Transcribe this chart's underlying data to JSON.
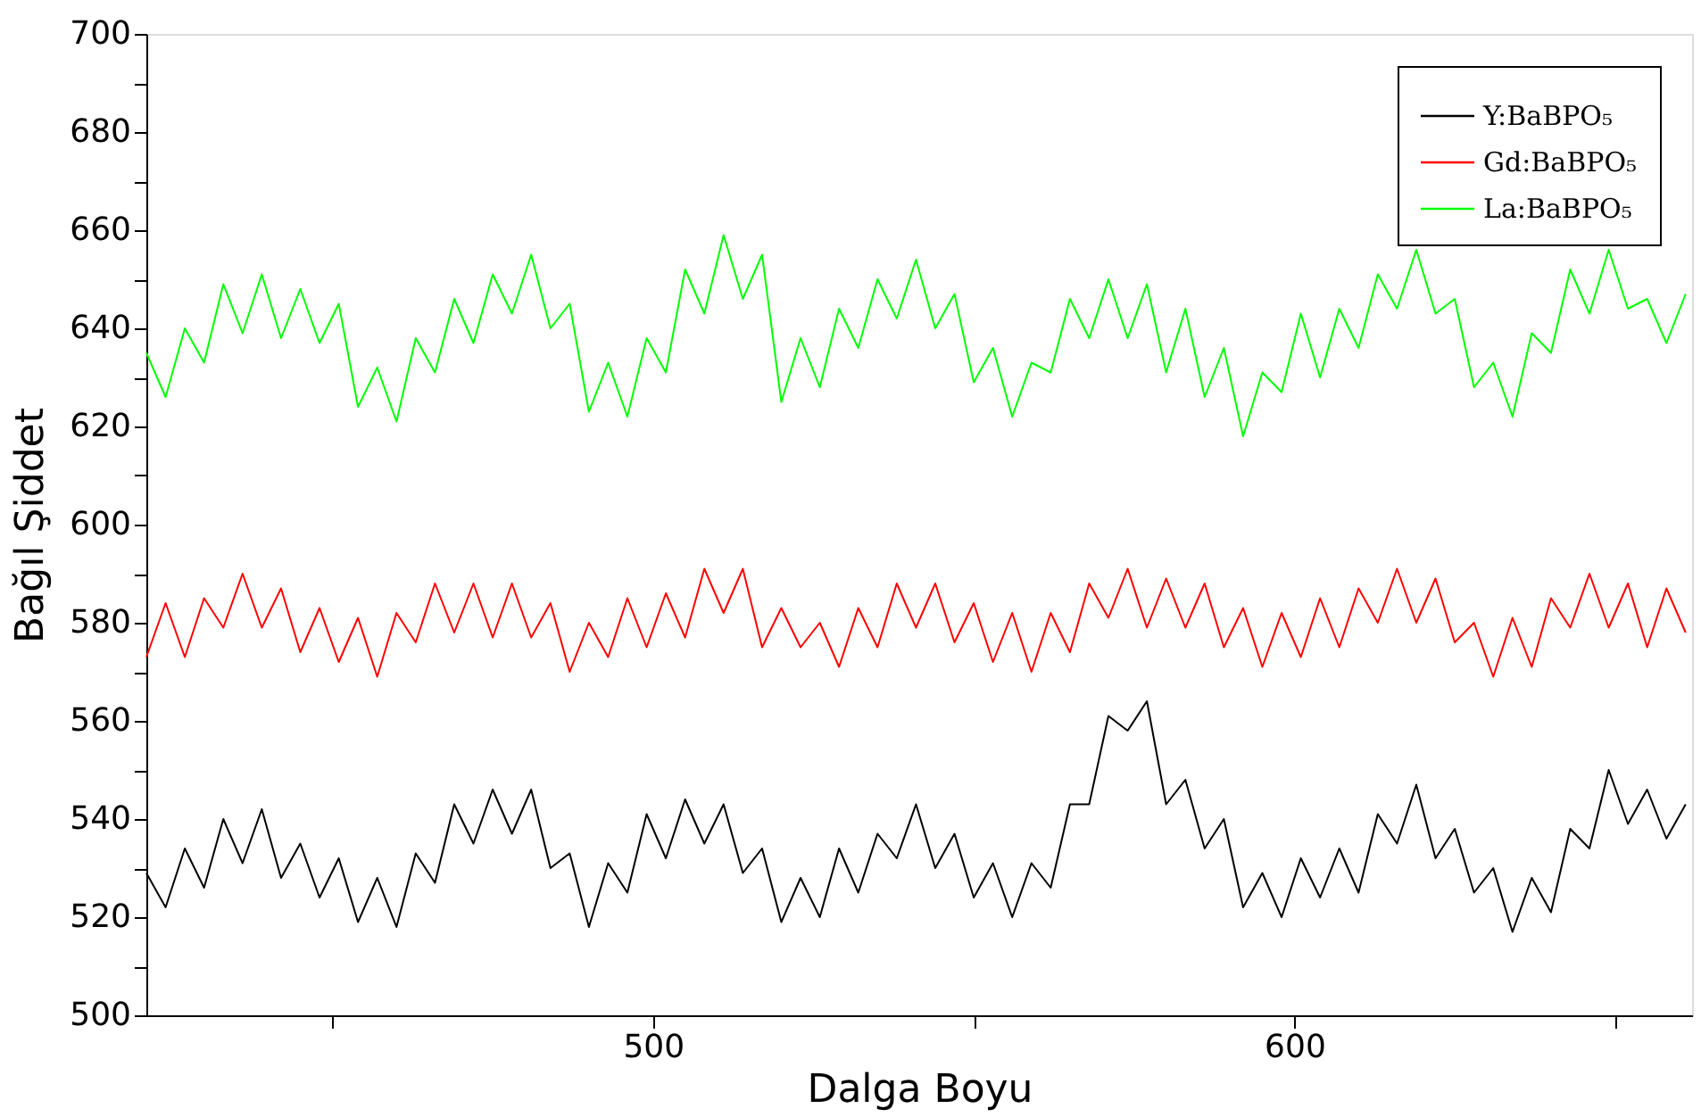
{
  "chart_data": {
    "type": "line",
    "xlabel": "Dalga Boyu",
    "ylabel": "Bağıl Şiddet",
    "legend": "top right",
    "grid": false,
    "xlim": [
      421,
      662
    ],
    "xticks": [
      {
        "value": 450,
        "label": null
      },
      500,
      {
        "value": 550,
        "label": null
      },
      600,
      {
        "value": 650,
        "label": null
      }
    ],
    "ylim": [
      500,
      700
    ],
    "yticks": [
      500,
      {
        "value": 510,
        "label": null
      },
      520,
      {
        "value": 530,
        "label": null
      },
      540,
      {
        "value": 550,
        "label": null
      },
      560,
      {
        "value": 570,
        "label": null
      },
      580,
      {
        "value": 590,
        "label": null
      },
      600,
      {
        "value": 610,
        "label": null
      },
      620,
      {
        "value": 630,
        "label": null
      },
      640,
      {
        "value": 650,
        "label": null
      },
      660,
      {
        "value": 670,
        "label": null
      },
      680,
      {
        "value": 690,
        "label": null
      },
      700
    ],
    "x": [
      421,
      424,
      427,
      430,
      433,
      436,
      439,
      442,
      445,
      448,
      451,
      454,
      457,
      460,
      463,
      466,
      469,
      472,
      475,
      478,
      481,
      484,
      487,
      490,
      493,
      496,
      499,
      502,
      505,
      508,
      511,
      514,
      517,
      520,
      523,
      526,
      529,
      532,
      535,
      538,
      541,
      544,
      547,
      550,
      553,
      556,
      559,
      562,
      565,
      568,
      571,
      574,
      577,
      580,
      583,
      586,
      589,
      592,
      595,
      598,
      601,
      604,
      607,
      610,
      613,
      616,
      619,
      622,
      625,
      628,
      631,
      634,
      637,
      640,
      643,
      646,
      649,
      652,
      655,
      658,
      661
    ],
    "series": [
      {
        "name": "Y:BaBPO₅",
        "color": "#000000",
        "values": [
          529,
          522,
          534,
          526,
          540,
          531,
          542,
          528,
          535,
          524,
          532,
          519,
          528,
          518,
          533,
          527,
          543,
          535,
          546,
          537,
          546,
          530,
          533,
          518,
          531,
          525,
          541,
          532,
          544,
          535,
          543,
          529,
          534,
          519,
          528,
          520,
          534,
          525,
          537,
          532,
          543,
          530,
          537,
          524,
          531,
          520,
          531,
          526,
          543,
          543,
          561,
          558,
          564,
          543,
          548,
          534,
          540,
          522,
          529,
          520,
          532,
          524,
          534,
          525,
          541,
          535,
          547,
          532,
          538,
          525,
          530,
          517,
          528,
          521,
          538,
          534,
          550,
          539,
          546,
          536,
          543
        ]
      },
      {
        "name": "Gd:BaBPO₅",
        "color": "#ff0000",
        "values": [
          573,
          584,
          573,
          585,
          579,
          590,
          579,
          587,
          574,
          583,
          572,
          581,
          569,
          582,
          576,
          588,
          578,
          588,
          577,
          588,
          577,
          584,
          570,
          580,
          573,
          585,
          575,
          586,
          577,
          591,
          582,
          591,
          575,
          583,
          575,
          580,
          571,
          583,
          575,
          588,
          579,
          588,
          576,
          584,
          572,
          582,
          570,
          582,
          574,
          588,
          581,
          591,
          579,
          589,
          579,
          588,
          575,
          583,
          571,
          582,
          573,
          585,
          575,
          587,
          580,
          591,
          580,
          589,
          576,
          580,
          569,
          581,
          571,
          585,
          579,
          590,
          579,
          588,
          575,
          587,
          578
        ]
      },
      {
        "name": "La:BaBPO₅",
        "color": "#00ff00",
        "values": [
          635,
          626,
          640,
          633,
          649,
          639,
          651,
          638,
          648,
          637,
          645,
          624,
          632,
          621,
          638,
          631,
          646,
          637,
          651,
          643,
          655,
          640,
          645,
          623,
          633,
          622,
          638,
          631,
          652,
          643,
          659,
          646,
          655,
          625,
          638,
          628,
          644,
          636,
          650,
          642,
          654,
          640,
          647,
          629,
          636,
          622,
          633,
          631,
          646,
          638,
          650,
          638,
          649,
          631,
          644,
          626,
          636,
          618,
          631,
          627,
          643,
          630,
          644,
          636,
          651,
          644,
          656,
          643,
          646,
          628,
          633,
          622,
          639,
          635,
          652,
          643,
          656,
          644,
          646,
          637,
          647
        ]
      }
    ]
  }
}
